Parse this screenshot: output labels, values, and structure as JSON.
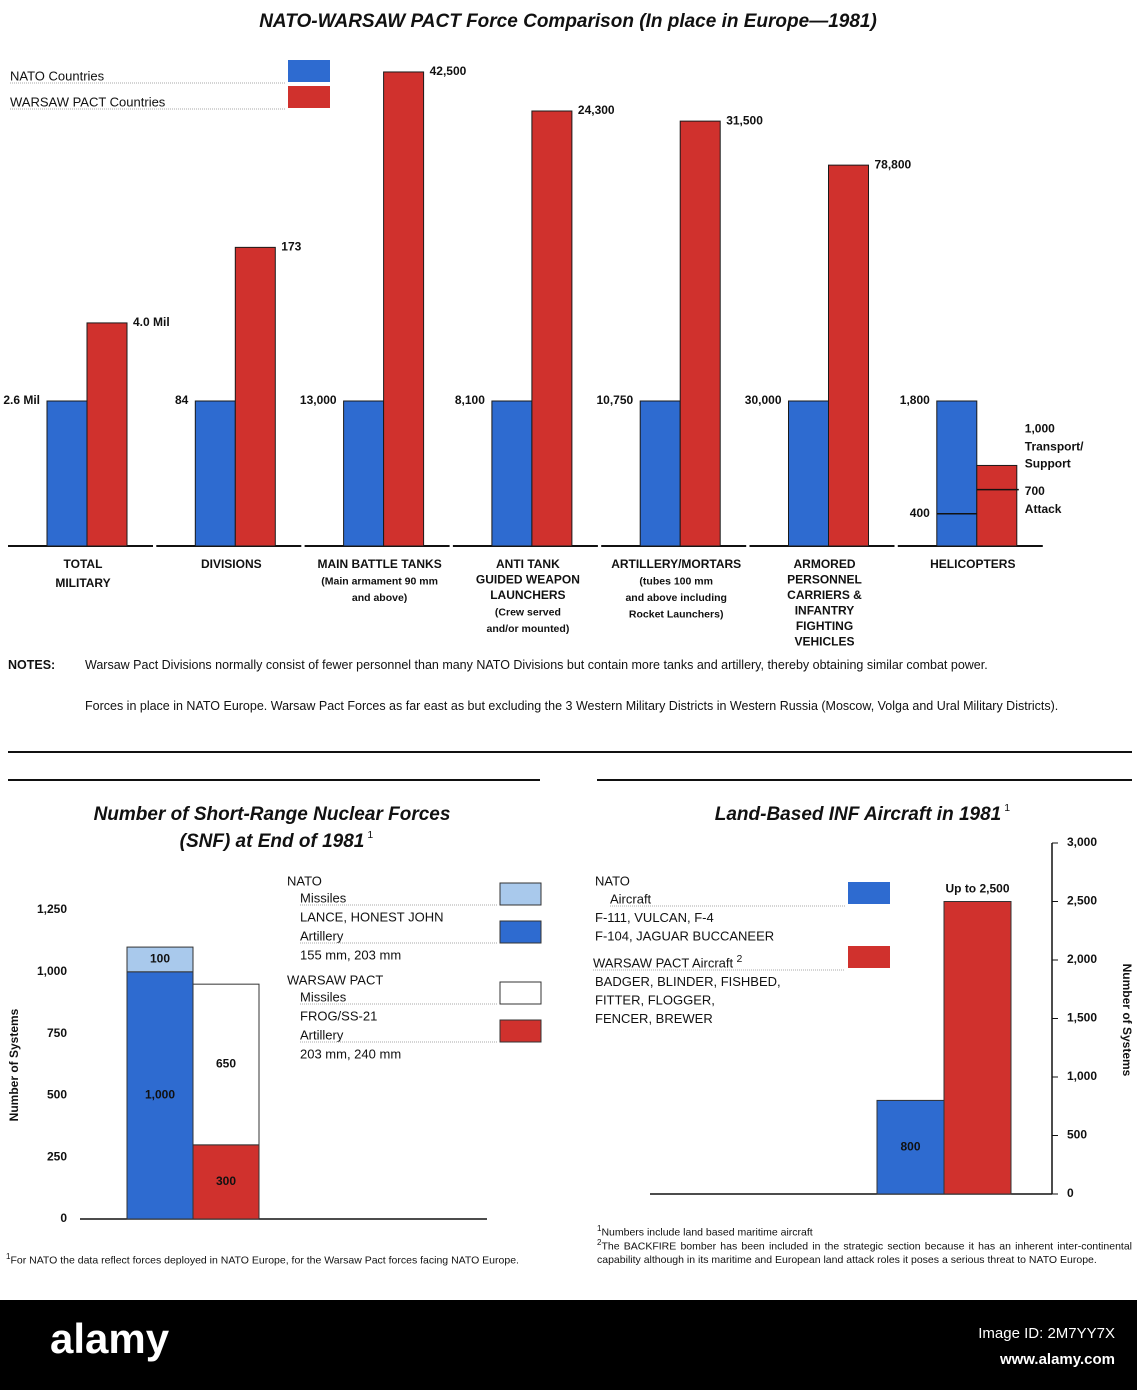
{
  "chart_data": [
    {
      "type": "comparison",
      "title": "NATO-WARSAW PACT Force Comparison (In place in Europe—1981)",
      "categories": [
        {
          "label": [
            "TOTAL",
            "MILITARY"
          ]
        },
        {
          "label": [
            "DIVISIONS"
          ]
        },
        {
          "label": [
            "MAIN BATTLE TANKS"
          ],
          "note": [
            "(Main armament 90 mm",
            "and above)"
          ]
        },
        {
          "label": [
            "ANTI TANK",
            "GUIDED WEAPON",
            "LAUNCHERS"
          ],
          "note": [
            "(Crew served",
            "and/or mounted)"
          ]
        },
        {
          "label": [
            "ARTILLERY/MORTARS"
          ],
          "note": [
            "(tubes 100 mm",
            "and above including",
            "Rocket Launchers)"
          ]
        },
        {
          "label": [
            "ARMORED",
            "PERSONNEL",
            "CARRIERS &",
            "INFANTRY",
            "FIGHTING",
            "VEHICLES"
          ]
        },
        {
          "label": [
            "HELICOPTERS"
          ],
          "breakdown": {
            "nato_attack": 400,
            "warsaw_transport": [
              "Transport/",
              "Support"
            ],
            "warsaw_attack": 700,
            "warsaw_attack_name": "Attack"
          }
        }
      ],
      "series": [
        {
          "name": "NATO Countries",
          "color": "#2e6bd0",
          "values": [
            2600000,
            84,
            13000,
            8100,
            10750,
            30000,
            1800
          ],
          "value_labels": [
            "2.6 Mil",
            "84",
            "13,000",
            "8,100",
            "10,750",
            "30,000",
            "1,800"
          ]
        },
        {
          "name": "WARSAW PACT Countries",
          "color": "#d0312d",
          "values": [
            4000000,
            173,
            42500,
            24300,
            31500,
            78800,
            1000
          ],
          "value_labels": [
            "4.0 Mil",
            "173",
            "42,500",
            "24,300",
            "31,500",
            "78,800",
            "1,000"
          ]
        }
      ],
      "notes": {
        "label": "NOTES:",
        "items": [
          "Warsaw Pact Divisions normally consist of fewer personnel than many NATO Divisions but contain more tanks and artillery, thereby obtaining similar combat power.",
          "Forces in place in NATO Europe. Warsaw Pact Forces as far east as but excluding the 3 Western Military Districts in Western Russia (Moscow, Volga and Ural Military Districts)."
        ]
      }
    },
    {
      "type": "stacked",
      "title": [
        "Number of Short-Range Nuclear Forces",
        "(SNF) at End of 1981"
      ],
      "title_sup": "1",
      "ylabel": "Number of Systems",
      "ylim": [
        0,
        1250
      ],
      "yticks": [
        0,
        250,
        500,
        750,
        {
          "value": 1000,
          "label": "1,000"
        },
        {
          "value": 1250,
          "label": "1,250"
        }
      ],
      "categories": [
        null,
        null
      ],
      "groups": [
        "NATO",
        "WARSAW PACT"
      ],
      "series": [
        {
          "group": 0,
          "name": "Missiles",
          "detail": "LANCE, HONEST JOHN",
          "color": "#a9c9ec",
          "values": [
            100,
            null
          ]
        },
        {
          "group": 0,
          "name": "Artillery",
          "detail": "155 mm, 203 mm",
          "color": "#2e6bd0",
          "values": [
            1000,
            null
          ],
          "value_labels": [
            "1,000",
            null
          ]
        },
        {
          "group": 1,
          "name": "Missiles",
          "detail": "FROG/SS-21",
          "color": "#ffffff",
          "values": [
            null,
            650
          ]
        },
        {
          "group": 1,
          "name": "Artillery",
          "detail": "203 mm, 240 mm",
          "color": "#d0312d",
          "values": [
            null,
            300
          ]
        }
      ],
      "footnote": {
        "mark": "1",
        "text": "For NATO the data reflect forces deployed in NATO Europe, for the Warsaw Pact forces facing NATO Europe."
      }
    },
    {
      "type": "bar",
      "title": "Land-Based INF Aircraft in 1981",
      "title_sup": "1",
      "ylabel": "Number of Systems",
      "ylim": [
        0,
        3000
      ],
      "yticks": [
        0,
        500,
        {
          "value": 1000,
          "label": "1,000"
        },
        {
          "value": 1500,
          "label": "1,500"
        },
        {
          "value": 2000,
          "label": "2,000"
        },
        {
          "value": 2500,
          "label": "2,500"
        },
        {
          "value": 3000,
          "label": "3,000"
        }
      ],
      "categories": [
        null,
        null
      ],
      "groups": [
        "NATO"
      ],
      "series": [
        {
          "group": 0,
          "name": "Aircraft",
          "details": [
            "F-111, VULCAN, F-4",
            "F-104, JAGUAR BUCCANEER"
          ],
          "color": "#2e6bd0",
          "values": [
            800,
            null
          ]
        },
        {
          "name": "WARSAW PACT Aircraft",
          "sup": "2",
          "details": [
            "BADGER, BLINDER, FISHBED,",
            "FITTER, FLOGGER,",
            "FENCER, BREWER"
          ],
          "color": "#d0312d",
          "values": [
            null,
            2500
          ],
          "value_labels": [
            null,
            "Up to 2,500"
          ]
        }
      ],
      "footnotes": [
        {
          "mark": "1",
          "text": "Numbers include land based maritime aircraft"
        },
        {
          "mark": "2",
          "text": "The BACKFIRE bomber has been included in the strategic section because it has an inherent inter-continental capability although in its maritime and European land attack roles it poses a serious threat to NATO Europe."
        }
      ]
    }
  ],
  "watermark": {
    "brand": "alamy",
    "image_id": "Image ID: 2M7YY7X",
    "site": "www.alamy.com"
  }
}
